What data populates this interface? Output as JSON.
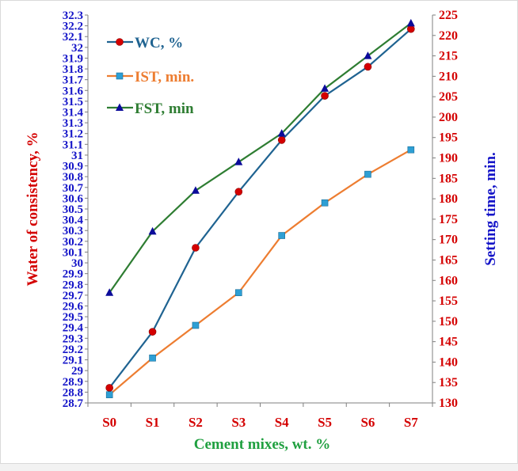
{
  "chart_data": {
    "type": "line",
    "categories": [
      "S0",
      "S1",
      "S2",
      "S3",
      "S4",
      "S5",
      "S6",
      "S7"
    ],
    "xlabel": "Cement mixes, wt. %",
    "ylabel_left": "Water of consistency, %",
    "ylabel_right": "Setting time, min.",
    "ylim_left": [
      28.7,
      32.3
    ],
    "ylim_right": [
      130,
      225
    ],
    "yticks_left": [
      "28.7",
      "28.8",
      "28.9",
      "29",
      "29.1",
      "29.2",
      "29.3",
      "29.4",
      "29.5",
      "29.6",
      "29.7",
      "29.8",
      "29.9",
      "30",
      "30.1",
      "30.2",
      "30.3",
      "30.4",
      "30.5",
      "30.6",
      "30.7",
      "30.8",
      "30.9",
      "31",
      "31.1",
      "31.2",
      "31.3",
      "31.4",
      "31.5",
      "31.6",
      "31.7",
      "31.8",
      "31.9",
      "32",
      "32.1",
      "32.2",
      "32.3"
    ],
    "yticks_right": [
      "130",
      "135",
      "140",
      "145",
      "150",
      "155",
      "160",
      "165",
      "170",
      "175",
      "180",
      "185",
      "190",
      "195",
      "200",
      "205",
      "210",
      "215",
      "220",
      "225"
    ],
    "grid": false,
    "legend_position": "top-left",
    "series": [
      {
        "name": "WC, %",
        "axis": "left",
        "marker": "circle",
        "line_color": "#1f6391",
        "marker_color": "#d40000",
        "values": [
          28.84,
          29.36,
          30.14,
          30.66,
          31.14,
          31.55,
          31.82,
          32.17
        ]
      },
      {
        "name": "IST, min.",
        "axis": "right",
        "marker": "square",
        "line_color": "#ed7d31",
        "marker_color": "#2e9fd4",
        "values": [
          132,
          141,
          149,
          157,
          171,
          179,
          186,
          192
        ]
      },
      {
        "name": "FST, min",
        "axis": "right",
        "marker": "triangle",
        "line_color": "#2e7d32",
        "marker_color": "#0b0b9a",
        "values": [
          157,
          172,
          182,
          189,
          196,
          207,
          215,
          223
        ]
      }
    ],
    "colors": {
      "left_axis": "#1414c8",
      "right_axis": "#d40000",
      "x_axis": "#d40000",
      "left_title": "#d40000",
      "right_title": "#1414c8",
      "x_title": "#20a040",
      "legend_wc": "#1f6391",
      "legend_ist": "#ed7d31",
      "legend_fst": "#2e7d32"
    }
  }
}
